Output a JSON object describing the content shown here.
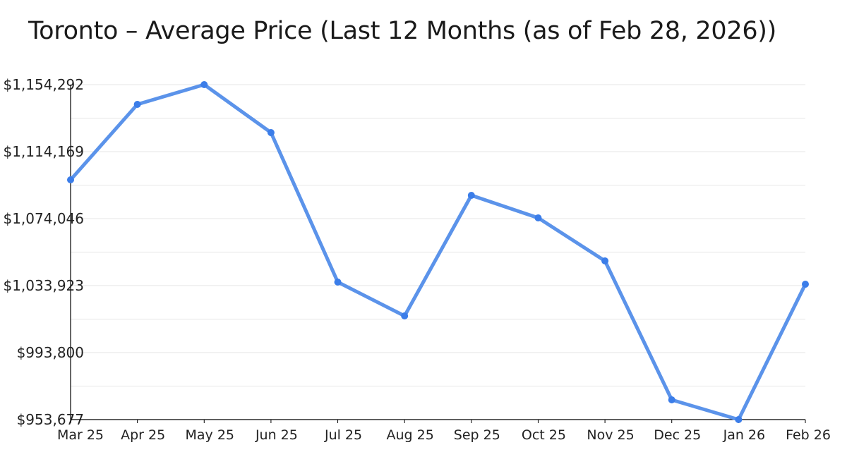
{
  "title": "Toronto – Average Price (Last 12 Months (as of Feb 28, 2026))",
  "colors": {
    "line": "#5b93ea",
    "marker": "#3b7de9",
    "grid": "#e6e6e6",
    "axis": "#000000"
  },
  "chart_data": {
    "type": "line",
    "title": "Toronto – Average Price (Last 12 Months (as of Feb 28, 2026))",
    "xlabel": "",
    "ylabel": "",
    "categories": [
      "Mar 25",
      "Apr 25",
      "May 25",
      "Jun 25",
      "Jul 25",
      "Aug 25",
      "Sep 25",
      "Oct 25",
      "Nov 25",
      "Dec 25",
      "Jan 26",
      "Feb 26"
    ],
    "series": [
      {
        "name": "Average Price",
        "values": [
          1097275,
          1142466,
          1154292,
          1125572,
          1036034,
          1015762,
          1087983,
          1074468,
          1048705,
          965503,
          953677,
          1034767
        ]
      }
    ],
    "yticks": [
      953677,
      993800,
      1033923,
      1074046,
      1114169,
      1154292
    ],
    "ytick_labels": [
      "$953,677",
      "$993,800",
      "$1,033,923",
      "$1,074,046",
      "$1,114,169",
      "$1,154,292"
    ],
    "ylim": [
      953677,
      1154292
    ],
    "grid": true,
    "legend": "none"
  }
}
